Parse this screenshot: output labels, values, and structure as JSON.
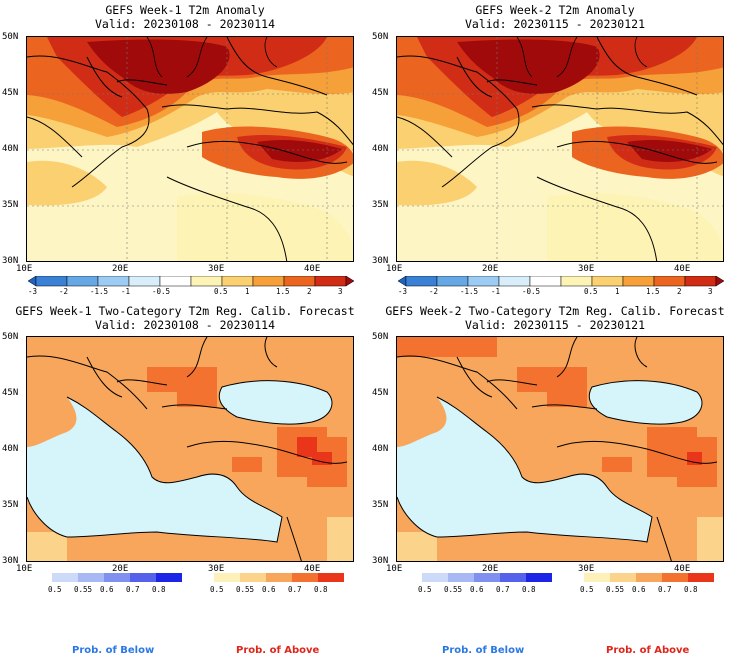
{
  "panels": [
    {
      "title": "GEFS Week-1 T2m Anomaly",
      "valid": "Valid: 20230108 - 20230114"
    },
    {
      "title": "GEFS Week-2 T2m Anomaly",
      "valid": "Valid: 20230115 - 20230121"
    },
    {
      "title": "GEFS Week-1 Two-Category T2m Reg. Calib. Forecast",
      "valid": "Valid: 20230108 - 20230114"
    },
    {
      "title": "GEFS Week-2 Two-Category T2m Reg. Calib. Forecast",
      "valid": "Valid: 20230115 - 20230121"
    }
  ],
  "axes": {
    "lat_labels": [
      "50N",
      "45N",
      "40N",
      "35N",
      "30N"
    ],
    "lon_labels": [
      "10E",
      "20E",
      "30E",
      "40E"
    ]
  },
  "anomaly_colorbar": {
    "labels": [
      "-3",
      "-2",
      "-1.5",
      "-1",
      "-0.5",
      "0.5",
      "1",
      "1.5",
      "2",
      "3"
    ],
    "colors": [
      "#1e63c2",
      "#3a80d5",
      "#66a8e6",
      "#9ccbf3",
      "#d9eefb",
      "#ffffff",
      "#fdf3b5",
      "#fbd071",
      "#f6a03a",
      "#eb6520",
      "#d12d16",
      "#a10a0a"
    ]
  },
  "below_colorbar": {
    "labels": [
      "0.5",
      "0.55",
      "0.6",
      "0.7",
      "0.8"
    ],
    "colors": [
      "#cdd9f8",
      "#a7b8f4",
      "#7f90ee",
      "#5561ea",
      "#1c24e6"
    ]
  },
  "above_colorbar": {
    "labels": [
      "0.5",
      "0.55",
      "0.6",
      "0.7",
      "0.8"
    ],
    "colors": [
      "#fdf0b8",
      "#fbd38a",
      "#f8a65c",
      "#f3722f",
      "#e9351a"
    ]
  },
  "legend": {
    "below": "Prob. of Below",
    "above": "Prob. of Above"
  },
  "colors": {
    "sea": "#d6f5fa",
    "below_text": "#2b78e4",
    "above_text": "#e0261b"
  }
}
